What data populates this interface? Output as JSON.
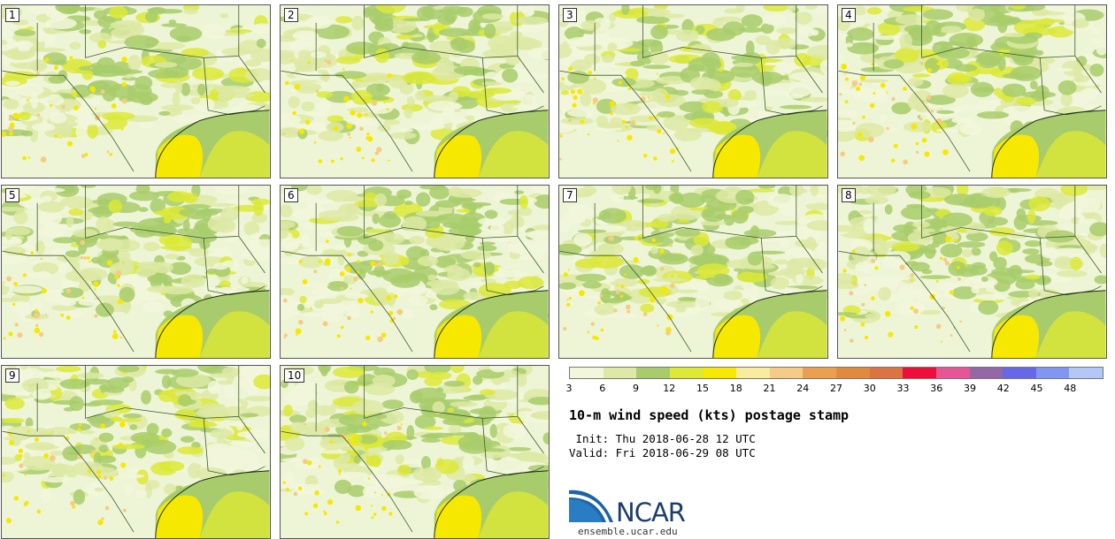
{
  "panels": [
    {
      "label": "1"
    },
    {
      "label": "2"
    },
    {
      "label": "3"
    },
    {
      "label": "4"
    },
    {
      "label": "5"
    },
    {
      "label": "6"
    },
    {
      "label": "7"
    },
    {
      "label": "8"
    },
    {
      "label": "9"
    },
    {
      "label": "10"
    }
  ],
  "colorbar": {
    "colors": [
      "#f2f7dc",
      "#dde9a5",
      "#a8cc6b",
      "#dce936",
      "#f7e800",
      "#f9ec9a",
      "#f5cc83",
      "#eaa04e",
      "#e08a3d",
      "#db7440",
      "#ee0e3c",
      "#e65596",
      "#9467a7",
      "#6668e6",
      "#8096ef",
      "#b4c8f7"
    ],
    "ticks": [
      "3",
      "6",
      "9",
      "12",
      "15",
      "18",
      "21",
      "24",
      "27",
      "30",
      "33",
      "36",
      "39",
      "42",
      "45",
      "48"
    ]
  },
  "title": "10-m wind speed (kts) postage stamp",
  "init": " Init: Thu 2018-06-28 12 UTC",
  "valid": "Valid: Fri 2018-06-29 08 UTC",
  "logo": {
    "text": "NCAR",
    "site": "ensemble.ucar.edu"
  }
}
